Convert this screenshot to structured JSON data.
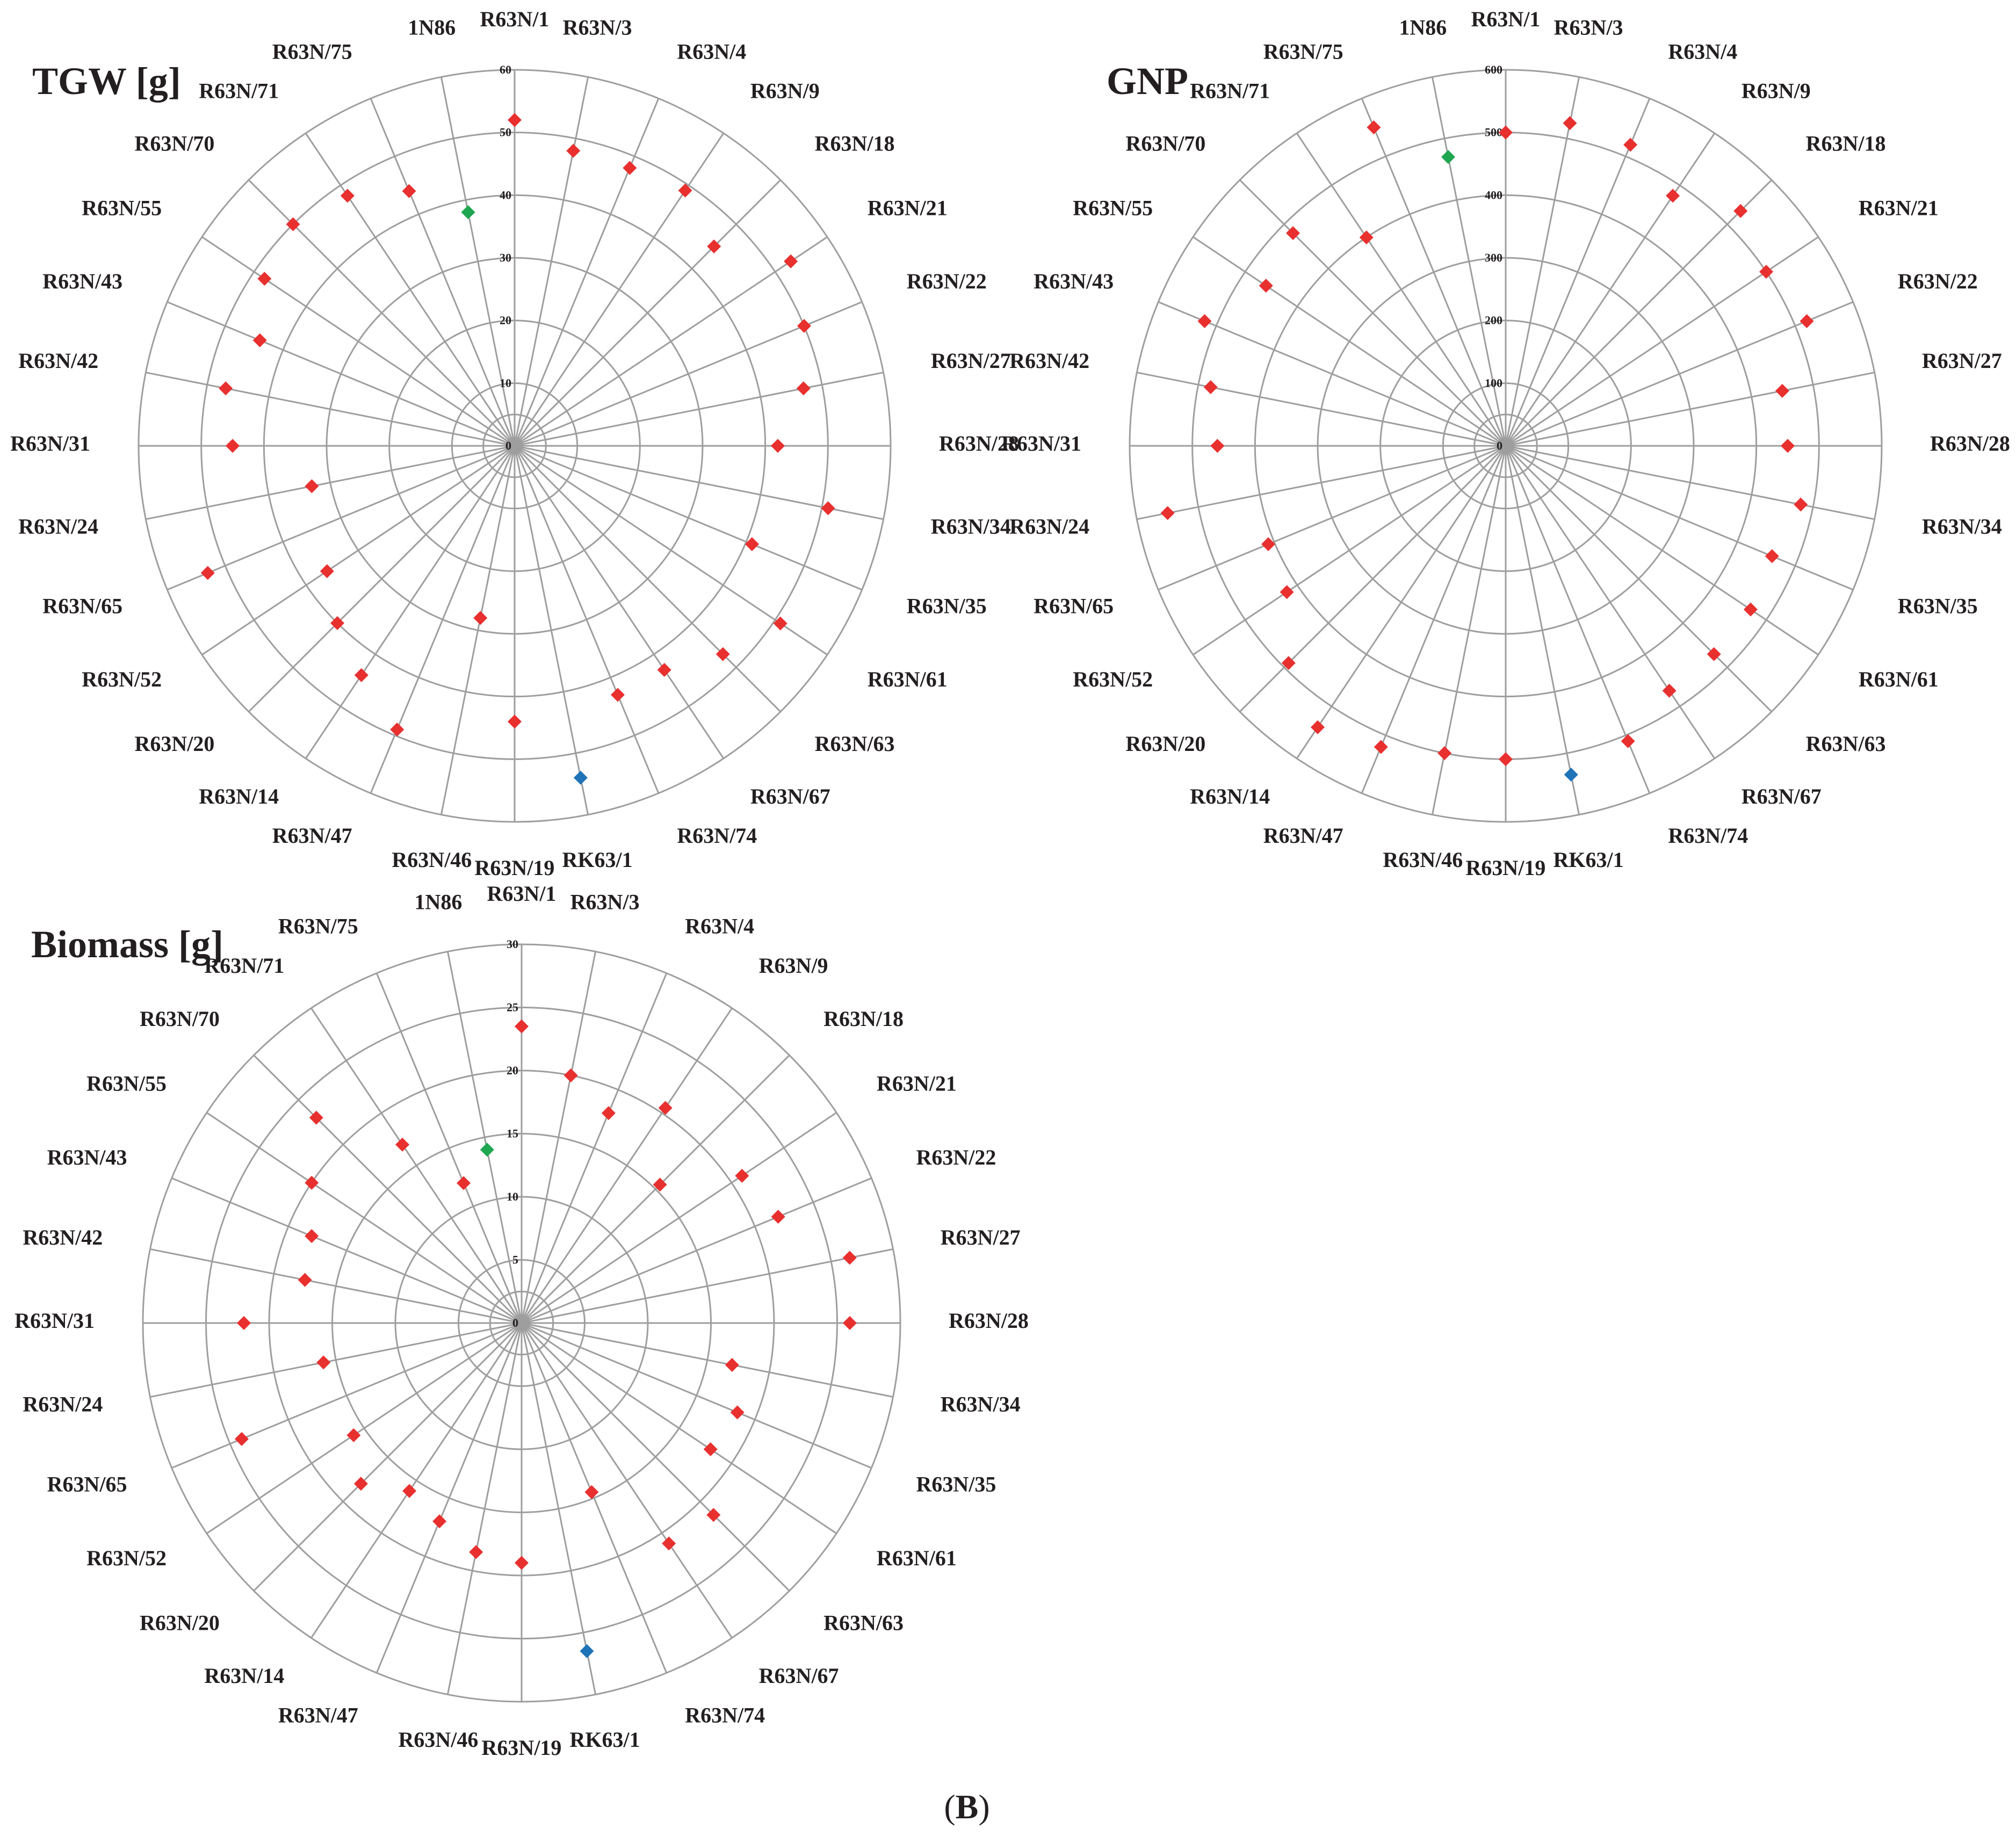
{
  "panel_label": "(B)",
  "panel_label_parts": {
    "open": "(",
    "letter": "B",
    "close": ")"
  },
  "colors": {
    "standard": "#e8302f",
    "parent_1N86": "#1fa651",
    "parent_RK63_1": "#1f73b7",
    "grid": "#9e9e9e",
    "text": "#231f20"
  },
  "chart_data": [
    {
      "type": "radar",
      "title": "TGW [g]",
      "ylim": [
        0,
        60
      ],
      "ticks": [
        0,
        10,
        20,
        30,
        40,
        50,
        60
      ],
      "tick_labels": [
        "0",
        "10",
        "20",
        "30",
        "40",
        "50",
        "60"
      ],
      "categories": [
        "R63N/1",
        "R63N/3",
        "R63N/4",
        "R63N/9",
        "R63N/18",
        "R63N/21",
        "R63N/22",
        "R63N/27",
        "R63N/28",
        "R63N/34",
        "R63N/35",
        "R63N/61",
        "R63N/63",
        "R63N/67",
        "R63N/74",
        "RK63/1",
        "R63N/19",
        "R63N/46",
        "R63N/47",
        "R63N/14",
        "R63N/20",
        "R63N/52",
        "R63N/65",
        "R63N/24",
        "R63N/31",
        "R63N/42",
        "R63N/43",
        "R63N/55",
        "R63N/70",
        "R63N/71",
        "R63N/75",
        "1N86"
      ],
      "values": [
        52,
        48,
        48,
        49,
        45,
        53,
        50,
        47,
        42,
        51,
        41,
        51,
        47,
        43,
        43,
        54,
        44,
        28,
        49,
        44,
        40,
        36,
        53,
        33,
        45,
        47,
        44,
        48,
        50,
        48,
        44,
        38
      ],
      "point_colors": [
        "#e8302f",
        "#e8302f",
        "#e8302f",
        "#e8302f",
        "#e8302f",
        "#e8302f",
        "#e8302f",
        "#e8302f",
        "#e8302f",
        "#e8302f",
        "#e8302f",
        "#e8302f",
        "#e8302f",
        "#e8302f",
        "#e8302f",
        "#1f73b7",
        "#e8302f",
        "#e8302f",
        "#e8302f",
        "#e8302f",
        "#e8302f",
        "#e8302f",
        "#e8302f",
        "#e8302f",
        "#e8302f",
        "#e8302f",
        "#e8302f",
        "#e8302f",
        "#e8302f",
        "#e8302f",
        "#e8302f",
        "#1fa651"
      ]
    },
    {
      "type": "radar",
      "title": "GNP",
      "ylim": [
        0,
        600
      ],
      "ticks": [
        0,
        100,
        200,
        300,
        400,
        500,
        600
      ],
      "tick_labels": [
        "0",
        "100",
        "200",
        "300",
        "400",
        "500",
        "600"
      ],
      "categories": [
        "R63N/1",
        "R63N/3",
        "R63N/4",
        "R63N/9",
        "R63N/18",
        "R63N/21",
        "R63N/22",
        "R63N/27",
        "R63N/28",
        "R63N/34",
        "R63N/35",
        "R63N/61",
        "R63N/63",
        "R63N/67",
        "R63N/74",
        "RK63/1",
        "R63N/19",
        "R63N/46",
        "R63N/47",
        "R63N/14",
        "R63N/20",
        "R63N/52",
        "R63N/65",
        "R63N/24",
        "R63N/31",
        "R63N/42",
        "R63N/43",
        "R63N/55",
        "R63N/70",
        "R63N/71",
        "R63N/75",
        "1N86"
      ],
      "values": [
        500,
        525,
        520,
        480,
        530,
        500,
        520,
        450,
        450,
        480,
        460,
        470,
        470,
        470,
        510,
        535,
        500,
        500,
        520,
        540,
        490,
        420,
        410,
        550,
        460,
        480,
        520,
        460,
        480,
        400,
        550,
        470
      ],
      "point_colors": [
        "#e8302f",
        "#e8302f",
        "#e8302f",
        "#e8302f",
        "#e8302f",
        "#e8302f",
        "#e8302f",
        "#e8302f",
        "#e8302f",
        "#e8302f",
        "#e8302f",
        "#e8302f",
        "#e8302f",
        "#e8302f",
        "#e8302f",
        "#1f73b7",
        "#e8302f",
        "#e8302f",
        "#e8302f",
        "#e8302f",
        "#e8302f",
        "#e8302f",
        "#e8302f",
        "#e8302f",
        "#e8302f",
        "#e8302f",
        "#e8302f",
        "#e8302f",
        "#e8302f",
        "#e8302f",
        "#e8302f",
        "#1fa651"
      ]
    },
    {
      "type": "radar",
      "title": "Biomass [g]",
      "ylim": [
        0,
        30
      ],
      "ticks": [
        0,
        5,
        10,
        15,
        20,
        25,
        30
      ],
      "tick_labels": [
        "0",
        "5",
        "10",
        "15",
        "20",
        "25",
        "30"
      ],
      "categories": [
        "R63N/1",
        "R63N/3",
        "R63N/4",
        "R63N/9",
        "R63N/18",
        "R63N/21",
        "R63N/22",
        "R63N/27",
        "R63N/28",
        "R63N/34",
        "R63N/35",
        "R63N/61",
        "R63N/63",
        "R63N/67",
        "R63N/74",
        "RK63/1",
        "R63N/19",
        "R63N/46",
        "R63N/47",
        "R63N/14",
        "R63N/20",
        "R63N/52",
        "R63N/65",
        "R63N/24",
        "R63N/31",
        "R63N/42",
        "R63N/43",
        "R63N/55",
        "R63N/70",
        "R63N/71",
        "R63N/75",
        "1N86"
      ],
      "values": [
        23.5,
        20,
        18,
        20.5,
        15.5,
        21,
        22,
        26.5,
        26,
        17,
        18.5,
        18,
        21.5,
        21,
        14.5,
        26.5,
        19,
        18.5,
        17,
        16,
        18,
        16,
        24,
        16,
        22,
        17.5,
        18,
        20,
        23,
        17,
        12,
        14
      ],
      "point_colors": [
        "#e8302f",
        "#e8302f",
        "#e8302f",
        "#e8302f",
        "#e8302f",
        "#e8302f",
        "#e8302f",
        "#e8302f",
        "#e8302f",
        "#e8302f",
        "#e8302f",
        "#e8302f",
        "#e8302f",
        "#e8302f",
        "#e8302f",
        "#1f73b7",
        "#e8302f",
        "#e8302f",
        "#e8302f",
        "#e8302f",
        "#e8302f",
        "#e8302f",
        "#e8302f",
        "#e8302f",
        "#e8302f",
        "#e8302f",
        "#e8302f",
        "#e8302f",
        "#e8302f",
        "#e8302f",
        "#e8302f",
        "#1fa651"
      ]
    }
  ]
}
